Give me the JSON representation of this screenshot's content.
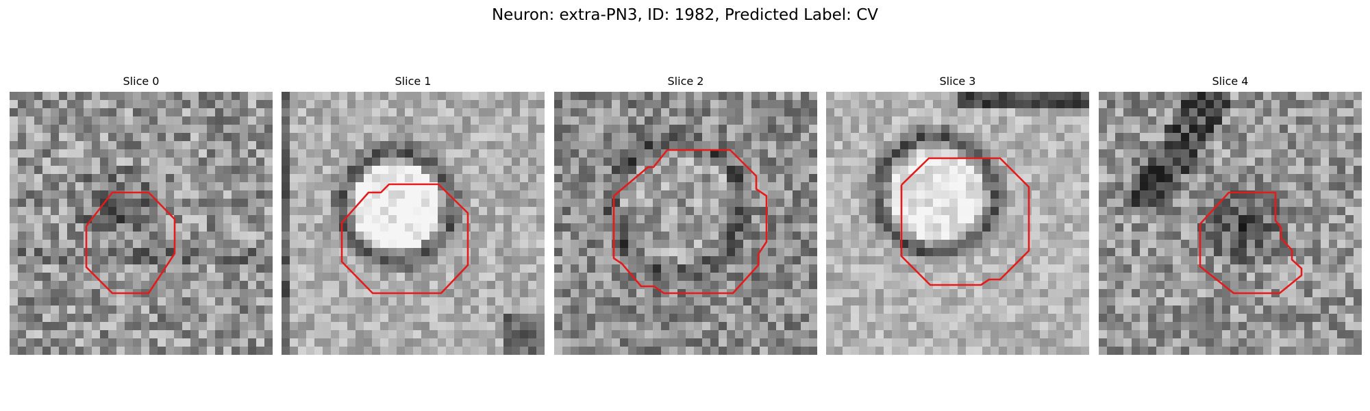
{
  "figure": {
    "title": "Neuron: extra-PN3, ID: 1982, Predicted Label: CV"
  },
  "colors": {
    "contour": "#e51b1b",
    "background": "#ffffff"
  },
  "slices": [
    {
      "title": "Slice 0",
      "center_brightness": "dark",
      "seed": 11,
      "contour": "red-octagon"
    },
    {
      "title": "Slice 1",
      "center_brightness": "bright",
      "seed": 23,
      "contour": "red-octagon"
    },
    {
      "title": "Slice 2",
      "center_brightness": "medium",
      "seed": 37,
      "contour": "red-octagon"
    },
    {
      "title": "Slice 3",
      "center_brightness": "bright",
      "seed": 51,
      "contour": "red-octagon"
    },
    {
      "title": "Slice 4",
      "center_brightness": "dark",
      "seed": 67,
      "contour": "red-octagon"
    }
  ]
}
